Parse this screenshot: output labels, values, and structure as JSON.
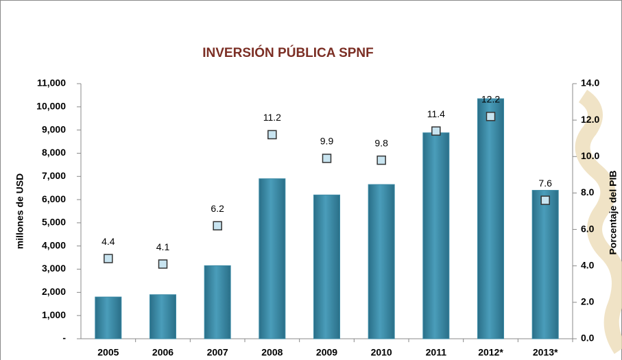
{
  "chart_data": {
    "type": "bar-marker",
    "title": "INVERSIÓN PÚBLICA SPNF",
    "y_label": "millones de USD",
    "y2_label": "Porcentaje del PIB",
    "categories": [
      "2005",
      "2006",
      "2007",
      "2008",
      "2009",
      "2010",
      "2011",
      "2012*",
      "2013*"
    ],
    "series": [
      {
        "type": "bar",
        "color": "#3b8aa5",
        "values": [
          1800,
          1900,
          3150,
          6900,
          6200,
          6650,
          8880,
          10350,
          6400
        ]
      },
      {
        "type": "marker",
        "axis": "y2",
        "color": "#c8e4f0",
        "values": [
          4.4,
          4.1,
          6.2,
          11.2,
          9.9,
          9.8,
          11.4,
          12.2,
          7.6
        ]
      }
    ],
    "ylim": [
      0,
      11000
    ],
    "yticks": [
      {
        "value": 0,
        "label": "-"
      },
      {
        "value": 1000,
        "label": "1,000"
      },
      {
        "value": 2000,
        "label": "2,000"
      },
      {
        "value": 3000,
        "label": "3,000"
      },
      {
        "value": 4000,
        "label": "4,000"
      },
      {
        "value": 5000,
        "label": "5,000"
      },
      {
        "value": 6000,
        "label": "6,000"
      },
      {
        "value": 7000,
        "label": "7,000"
      },
      {
        "value": 8000,
        "label": "8,000"
      },
      {
        "value": 9000,
        "label": "9,000"
      },
      {
        "value": 10000,
        "label": "10,000"
      },
      {
        "value": 11000,
        "label": "11,000"
      }
    ],
    "y2lim": [
      0,
      14
    ],
    "y2ticks": [
      {
        "value": 0,
        "label": "0.0"
      },
      {
        "value": 2,
        "label": "2.0"
      },
      {
        "value": 4,
        "label": "4.0"
      },
      {
        "value": 6,
        "label": "6.0"
      },
      {
        "value": 8,
        "label": "8.0"
      },
      {
        "value": 10,
        "label": "10.0"
      },
      {
        "value": 12,
        "label": "12.0"
      },
      {
        "value": 14,
        "label": "14.0"
      }
    ],
    "grid": false
  }
}
